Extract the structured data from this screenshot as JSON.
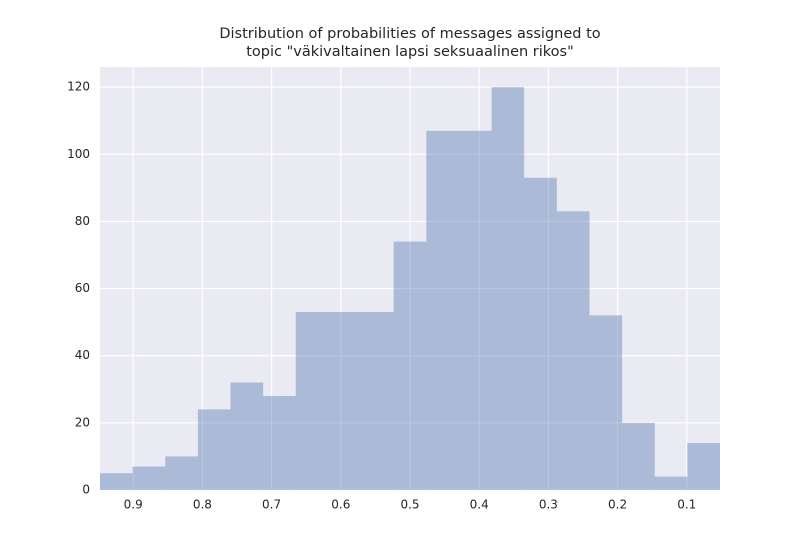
{
  "chart_data": {
    "type": "histogram",
    "title": [
      "Distribution of probabilities of messages assigned to",
      "topic \"väkivaltainen lapsi seksuaalinen rikos\""
    ],
    "bins": [
      0.052,
      0.0992,
      0.1463,
      0.1935,
      0.2406,
      0.2878,
      0.335,
      0.3821,
      0.4293,
      0.4764,
      0.5236,
      0.5708,
      0.6179,
      0.6651,
      0.7122,
      0.7594,
      0.8066,
      0.8537,
      0.9009,
      0.948
    ],
    "counts": [
      14,
      4,
      20,
      52,
      83,
      93,
      120,
      107,
      107,
      74,
      53,
      53,
      53,
      28,
      32,
      24,
      10,
      7,
      5
    ],
    "color": "#4c72b0",
    "xlim": [
      0.948,
      0.052
    ],
    "xticks": [
      0.9,
      0.8,
      0.7,
      0.6,
      0.5,
      0.4,
      0.3,
      0.2,
      0.1
    ],
    "ylim": [
      0,
      126
    ],
    "yticks": [
      0,
      20,
      40,
      60,
      80,
      100,
      120
    ],
    "grid": true
  }
}
